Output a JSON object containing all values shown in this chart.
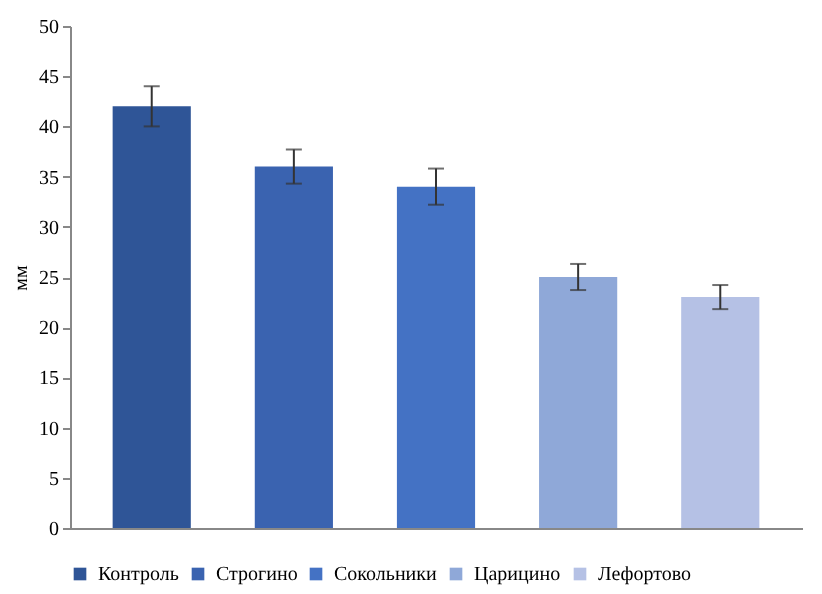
{
  "chart_data": {
    "type": "bar",
    "ylabel": "мм",
    "stacked": true,
    "categories": [
      null,
      null,
      null,
      null,
      null
    ],
    "series": [
      {
        "name": "Контроль",
        "color": "#2f5597",
        "values": [
          42,
          null,
          null,
          null,
          null
        ],
        "errors": [
          2,
          null,
          null,
          null,
          null
        ]
      },
      {
        "name": "Строгино",
        "color": "#3a63b0",
        "values": [
          null,
          36,
          null,
          null,
          null
        ],
        "errors": [
          null,
          1.7,
          null,
          null,
          null
        ]
      },
      {
        "name": "Сокольники",
        "color": "#4472c4",
        "values": [
          null,
          null,
          34,
          null,
          null
        ],
        "errors": [
          null,
          null,
          1.8,
          null,
          null
        ]
      },
      {
        "name": "Царицино",
        "color": "#8fa8d8",
        "values": [
          null,
          null,
          null,
          25,
          null
        ],
        "errors": [
          null,
          null,
          null,
          1.3,
          null
        ]
      },
      {
        "name": "Лефортово",
        "color": "#b5c1e5",
        "values": [
          null,
          null,
          null,
          null,
          23
        ],
        "errors": [
          null,
          null,
          null,
          null,
          1.2
        ]
      }
    ],
    "ylim": [
      0,
      50
    ],
    "yticks": [
      0,
      5,
      10,
      15,
      20,
      25,
      30,
      35,
      40,
      45,
      50
    ],
    "grid": false,
    "legend": "bottom",
    "tick_labels": "y"
  }
}
